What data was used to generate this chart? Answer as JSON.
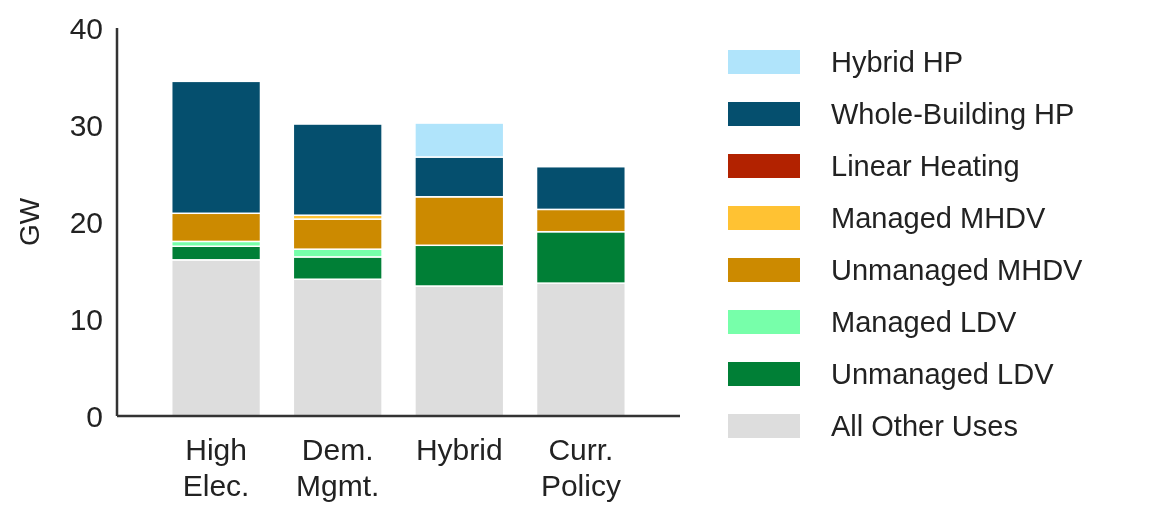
{
  "chart_data": {
    "type": "bar",
    "stacked": true,
    "ylabel": "GW",
    "categories": [
      "High Elec.",
      "Dem. Mgmt.",
      "Hybrid",
      "Curr. Policy"
    ],
    "ylim": [
      0,
      40
    ],
    "yticks": [
      0,
      10,
      20,
      30,
      40
    ],
    "grid": false,
    "legend": "right",
    "series": [
      {
        "name": "All Other Uses",
        "color": "#dddddd",
        "values": [
          16.1,
          14.1,
          13.4,
          13.7
        ]
      },
      {
        "name": "Unmanaged LDV",
        "color": "#007f36",
        "values": [
          1.4,
          2.3,
          4.2,
          5.3
        ]
      },
      {
        "name": "Managed LDV",
        "color": "#77ffaa",
        "values": [
          0.5,
          0.8,
          0,
          0
        ]
      },
      {
        "name": "Unmanaged MHDV",
        "color": "#cc8a00",
        "values": [
          2.9,
          3.1,
          5.0,
          2.3
        ]
      },
      {
        "name": "Managed MHDV",
        "color": "#ffc233",
        "values": [
          0,
          0.4,
          0,
          0
        ]
      },
      {
        "name": "Linear Heating",
        "color": "#b22200",
        "values": [
          0,
          0,
          0,
          0
        ]
      },
      {
        "name": "Whole-Building HP",
        "color": "#054f6e",
        "values": [
          13.6,
          9.4,
          4.1,
          4.4
        ]
      },
      {
        "name": "Hybrid HP",
        "color": "#b0e4fb",
        "values": [
          0,
          0,
          3.5,
          0
        ]
      }
    ]
  }
}
